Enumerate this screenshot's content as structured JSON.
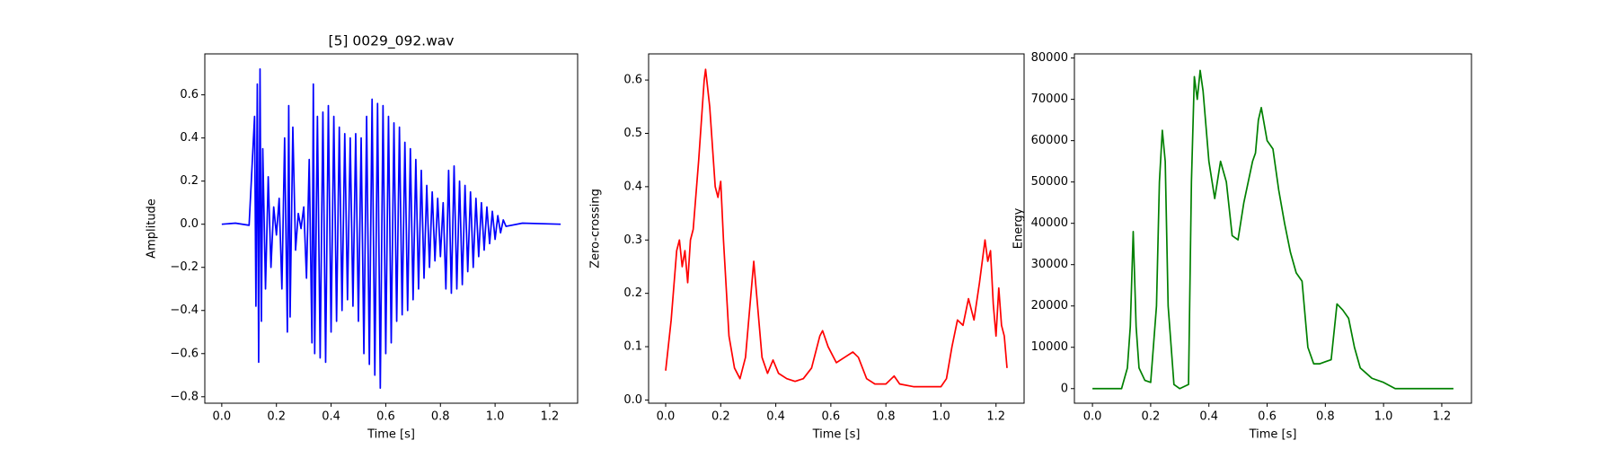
{
  "chart_data": [
    {
      "type": "line",
      "title": "[5] 0029_092.wav",
      "x_label": "Time [s]",
      "y_label": "Amplitude",
      "color": "#0000ff",
      "x": [
        0,
        0.05,
        0.1,
        0.12,
        0.125,
        0.13,
        0.135,
        0.14,
        0.145,
        0.15,
        0.16,
        0.17,
        0.18,
        0.19,
        0.2,
        0.21,
        0.22,
        0.23,
        0.24,
        0.245,
        0.25,
        0.26,
        0.27,
        0.28,
        0.29,
        0.3,
        0.31,
        0.32,
        0.33,
        0.335,
        0.34,
        0.35,
        0.36,
        0.37,
        0.38,
        0.39,
        0.4,
        0.41,
        0.42,
        0.43,
        0.44,
        0.45,
        0.46,
        0.47,
        0.48,
        0.49,
        0.5,
        0.51,
        0.52,
        0.53,
        0.54,
        0.55,
        0.56,
        0.57,
        0.58,
        0.59,
        0.6,
        0.61,
        0.62,
        0.63,
        0.64,
        0.65,
        0.66,
        0.67,
        0.68,
        0.69,
        0.7,
        0.71,
        0.72,
        0.73,
        0.74,
        0.75,
        0.76,
        0.77,
        0.78,
        0.79,
        0.8,
        0.81,
        0.82,
        0.83,
        0.84,
        0.85,
        0.86,
        0.87,
        0.88,
        0.89,
        0.9,
        0.91,
        0.92,
        0.93,
        0.94,
        0.95,
        0.96,
        0.97,
        0.98,
        0.99,
        1.0,
        1.01,
        1.02,
        1.03,
        1.04,
        1.1,
        1.24
      ],
      "values": [
        0,
        0.005,
        -0.005,
        0.5,
        -0.38,
        0.65,
        -0.64,
        0.72,
        -0.45,
        0.35,
        -0.3,
        0.22,
        -0.2,
        0.08,
        -0.05,
        0.12,
        -0.3,
        0.4,
        -0.5,
        0.55,
        -0.43,
        0.45,
        -0.12,
        0.05,
        -0.02,
        0.08,
        -0.25,
        0.3,
        -0.55,
        0.65,
        -0.6,
        0.5,
        -0.62,
        0.52,
        -0.64,
        0.55,
        -0.5,
        0.5,
        -0.45,
        0.45,
        -0.4,
        0.42,
        -0.35,
        0.4,
        -0.38,
        0.42,
        -0.45,
        0.4,
        -0.6,
        0.5,
        -0.65,
        0.58,
        -0.7,
        0.56,
        -0.76,
        0.55,
        -0.6,
        0.5,
        -0.55,
        0.47,
        -0.45,
        0.45,
        -0.42,
        0.38,
        -0.4,
        0.35,
        -0.35,
        0.3,
        -0.3,
        0.25,
        -0.25,
        0.18,
        -0.2,
        0.15,
        -0.17,
        0.12,
        -0.15,
        0.1,
        -0.3,
        0.25,
        -0.32,
        0.27,
        -0.3,
        0.2,
        -0.28,
        0.18,
        -0.22,
        0.15,
        -0.2,
        0.12,
        -0.15,
        0.1,
        -0.12,
        0.08,
        -0.09,
        0.06,
        -0.07,
        0.04,
        -0.04,
        0.02,
        -0.01,
        0.005,
        0
      ],
      "xlim": [
        -0.062,
        1.302
      ],
      "ylim": [
        -0.83,
        0.79
      ],
      "xticks": [
        {
          "value": 0,
          "label": "0.0"
        },
        {
          "value": 0.2,
          "label": "0.2"
        },
        {
          "value": 0.4,
          "label": "0.4"
        },
        {
          "value": 0.6,
          "label": "0.6"
        },
        {
          "value": 0.8,
          "label": "0.8"
        },
        {
          "value": 1,
          "label": "1.0"
        },
        {
          "value": 1.2,
          "label": "1.2"
        }
      ],
      "yticks": [
        {
          "value": -0.8,
          "label": "−0.8"
        },
        {
          "value": -0.6,
          "label": "−0.6"
        },
        {
          "value": -0.4,
          "label": "−0.4"
        },
        {
          "value": -0.2,
          "label": "−0.2"
        },
        {
          "value": 0,
          "label": "0.0"
        },
        {
          "value": 0.2,
          "label": "0.2"
        },
        {
          "value": 0.4,
          "label": "0.4"
        },
        {
          "value": 0.6,
          "label": "0.6"
        }
      ]
    },
    {
      "type": "line",
      "x_label": "Time [s]",
      "y_label": "Zero-crossing",
      "color": "#ff0000",
      "x": [
        0,
        0.02,
        0.04,
        0.05,
        0.06,
        0.07,
        0.08,
        0.09,
        0.1,
        0.12,
        0.14,
        0.145,
        0.16,
        0.18,
        0.19,
        0.2,
        0.21,
        0.23,
        0.25,
        0.27,
        0.29,
        0.31,
        0.32,
        0.33,
        0.35,
        0.37,
        0.39,
        0.41,
        0.44,
        0.47,
        0.5,
        0.53,
        0.56,
        0.57,
        0.59,
        0.62,
        0.65,
        0.68,
        0.7,
        0.73,
        0.76,
        0.8,
        0.82,
        0.83,
        0.85,
        0.9,
        0.95,
        1.0,
        1.02,
        1.04,
        1.06,
        1.08,
        1.1,
        1.12,
        1.14,
        1.16,
        1.17,
        1.18,
        1.19,
        1.2,
        1.21,
        1.22,
        1.23,
        1.24
      ],
      "values": [
        0.055,
        0.15,
        0.28,
        0.3,
        0.25,
        0.28,
        0.22,
        0.3,
        0.32,
        0.45,
        0.6,
        0.62,
        0.55,
        0.4,
        0.38,
        0.41,
        0.3,
        0.12,
        0.06,
        0.04,
        0.08,
        0.2,
        0.26,
        0.2,
        0.08,
        0.05,
        0.075,
        0.05,
        0.04,
        0.035,
        0.04,
        0.06,
        0.12,
        0.13,
        0.1,
        0.07,
        0.08,
        0.09,
        0.08,
        0.04,
        0.03,
        0.03,
        0.04,
        0.045,
        0.03,
        0.025,
        0.025,
        0.025,
        0.04,
        0.1,
        0.15,
        0.14,
        0.19,
        0.15,
        0.22,
        0.3,
        0.26,
        0.28,
        0.18,
        0.12,
        0.21,
        0.14,
        0.12,
        0.06
      ],
      "xlim": [
        -0.062,
        1.302
      ],
      "ylim": [
        -0.006,
        0.649
      ],
      "xticks": [
        {
          "value": 0,
          "label": "0.0"
        },
        {
          "value": 0.2,
          "label": "0.2"
        },
        {
          "value": 0.4,
          "label": "0.4"
        },
        {
          "value": 0.6,
          "label": "0.6"
        },
        {
          "value": 0.8,
          "label": "0.8"
        },
        {
          "value": 1,
          "label": "1.0"
        },
        {
          "value": 1.2,
          "label": "1.2"
        }
      ],
      "yticks": [
        {
          "value": 0,
          "label": "0.0"
        },
        0.1,
        0.2,
        0.3,
        0.4,
        0.5,
        0.6
      ]
    },
    {
      "type": "line",
      "x_label": "Time [s]",
      "y_label": "Energy",
      "color": "#008000",
      "x": [
        0,
        0.1,
        0.12,
        0.13,
        0.14,
        0.15,
        0.16,
        0.18,
        0.2,
        0.22,
        0.23,
        0.24,
        0.25,
        0.26,
        0.28,
        0.3,
        0.33,
        0.34,
        0.35,
        0.36,
        0.37,
        0.38,
        0.4,
        0.42,
        0.44,
        0.46,
        0.48,
        0.5,
        0.52,
        0.55,
        0.56,
        0.57,
        0.58,
        0.6,
        0.62,
        0.64,
        0.66,
        0.68,
        0.7,
        0.72,
        0.74,
        0.76,
        0.78,
        0.8,
        0.82,
        0.84,
        0.86,
        0.88,
        0.9,
        0.92,
        0.96,
        1.0,
        1.04,
        1.24
      ],
      "values": [
        0,
        0,
        5000,
        15000,
        38000,
        15000,
        5000,
        2000,
        1500,
        20000,
        50000,
        62500,
        55000,
        20000,
        1000,
        0,
        1000,
        50000,
        75500,
        70000,
        77000,
        72000,
        55000,
        46000,
        55000,
        50000,
        37000,
        36000,
        45000,
        55000,
        57000,
        65000,
        68000,
        60000,
        58000,
        48000,
        40000,
        33000,
        28000,
        26000,
        10000,
        6000,
        6000,
        6500,
        7000,
        20500,
        19000,
        17000,
        10000,
        5000,
        2500,
        1500,
        0,
        0
      ],
      "xlim": [
        -0.062,
        1.302
      ],
      "ylim": [
        -3530,
        81000
      ],
      "xticks": [
        {
          "value": 0,
          "label": "0.0"
        },
        {
          "value": 0.2,
          "label": "0.2"
        },
        {
          "value": 0.4,
          "label": "0.4"
        },
        {
          "value": 0.6,
          "label": "0.6"
        },
        {
          "value": 0.8,
          "label": "0.8"
        },
        {
          "value": 1,
          "label": "1.0"
        },
        {
          "value": 1.2,
          "label": "1.2"
        }
      ],
      "yticks": [
        0,
        10000,
        20000,
        30000,
        40000,
        50000,
        60000,
        70000,
        80000
      ]
    }
  ]
}
